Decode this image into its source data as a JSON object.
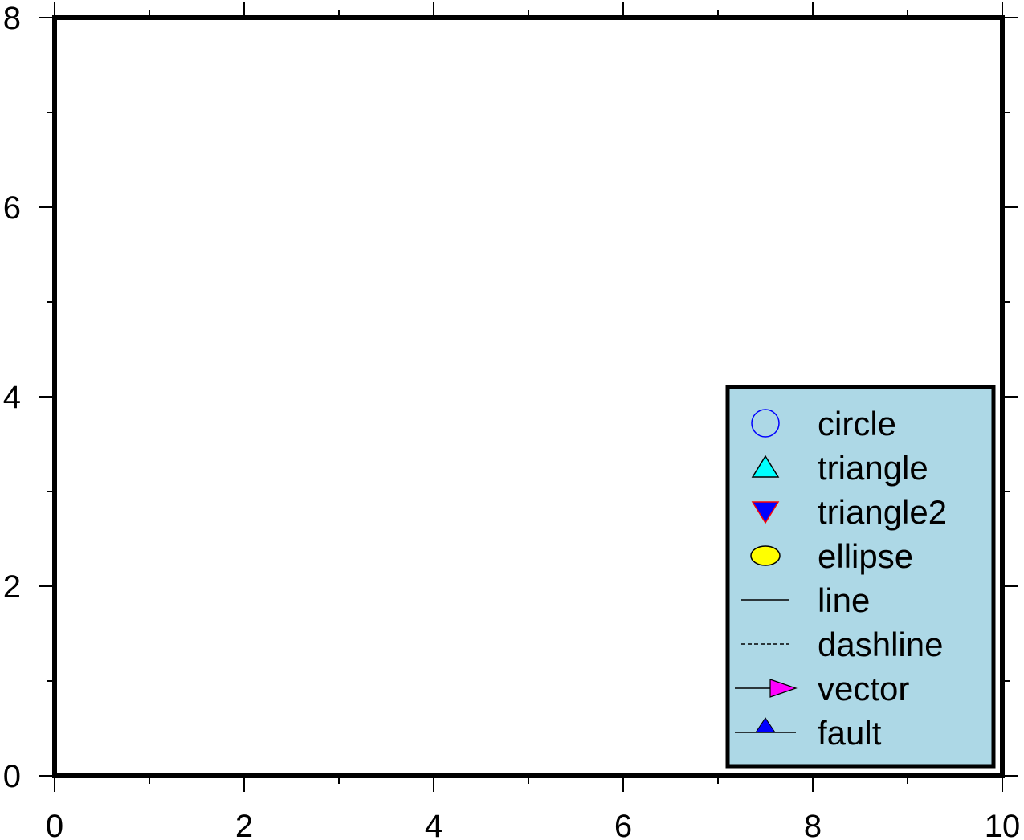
{
  "chart_data": {
    "type": "scatter",
    "title": "",
    "xlabel": "",
    "ylabel": "",
    "xlim": [
      0,
      10
    ],
    "ylim": [
      0,
      8
    ],
    "x_ticks": [
      0,
      2,
      4,
      6,
      8,
      10
    ],
    "x_tick_labels": [
      "0",
      "2",
      "4",
      "6",
      "8",
      "10"
    ],
    "y_ticks": [
      0,
      2,
      4,
      6,
      8
    ],
    "y_tick_labels": [
      "0",
      "2",
      "4",
      "6",
      "8"
    ],
    "x_minor_step": 1,
    "y_minor_step": 1,
    "grid": false,
    "series": [],
    "legend": {
      "position": "bottom-right",
      "background": "#add8e6",
      "items": [
        {
          "label": "circle",
          "symbol": "circle",
          "fill": "none",
          "stroke": "#0000ff"
        },
        {
          "label": "triangle",
          "symbol": "triangle-up",
          "fill": "#00ffff",
          "stroke": "#000000"
        },
        {
          "label": "triangle2",
          "symbol": "triangle-down",
          "fill": "#0000ff",
          "stroke": "#ff0000"
        },
        {
          "label": "ellipse",
          "symbol": "ellipse",
          "fill": "#ffff00",
          "stroke": "#000000"
        },
        {
          "label": "line",
          "symbol": "line",
          "stroke": "#000000"
        },
        {
          "label": "dashline",
          "symbol": "dashline",
          "stroke": "#000000"
        },
        {
          "label": "vector",
          "symbol": "vector",
          "fill": "#ff00ff",
          "stroke": "#000000"
        },
        {
          "label": "fault",
          "symbol": "fault",
          "fill": "#0000ff",
          "stroke": "#000000"
        }
      ]
    }
  }
}
